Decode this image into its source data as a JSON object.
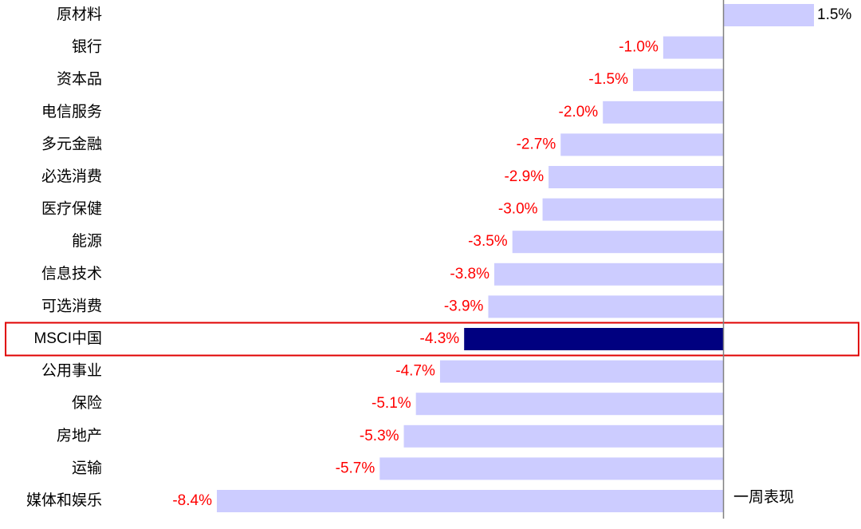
{
  "chart_data": {
    "type": "barh",
    "categories": [
      "原材料",
      "银行",
      "资本品",
      "电信服务",
      "多元金融",
      "必选消费",
      "医疗保健",
      "能源",
      "信息技术",
      "可选消费",
      "MSCI中国",
      "公用事业",
      "保险",
      "房地产",
      "运输",
      "媒体和娱乐"
    ],
    "values": [
      1.5,
      -1.0,
      -1.5,
      -2.0,
      -2.7,
      -2.9,
      -3.0,
      -3.5,
      -3.8,
      -3.9,
      -4.3,
      -4.7,
      -5.1,
      -5.3,
      -5.7,
      -8.4
    ],
    "value_labels": [
      "1.5%",
      "-1.0%",
      "-1.5%",
      "-2.0%",
      "-2.7%",
      "-2.9%",
      "-3.0%",
      "-3.5%",
      "-3.8%",
      "-3.9%",
      "-4.3%",
      "-4.7%",
      "-5.1%",
      "-5.3%",
      "-5.7%",
      "-8.4%"
    ],
    "colors": [
      "#ccccff",
      "#ccccff",
      "#ccccff",
      "#ccccff",
      "#ccccff",
      "#ccccff",
      "#ccccff",
      "#ccccff",
      "#ccccff",
      "#ccccff",
      "#000080",
      "#ccccff",
      "#ccccff",
      "#ccccff",
      "#ccccff",
      "#ccccff"
    ],
    "highlight_category": "MSCI中国",
    "highlight_box_color": "#e00000",
    "label_colors": {
      "negative": "#ff0000",
      "positive": "#000000"
    },
    "annotation": "一周表现"
  }
}
